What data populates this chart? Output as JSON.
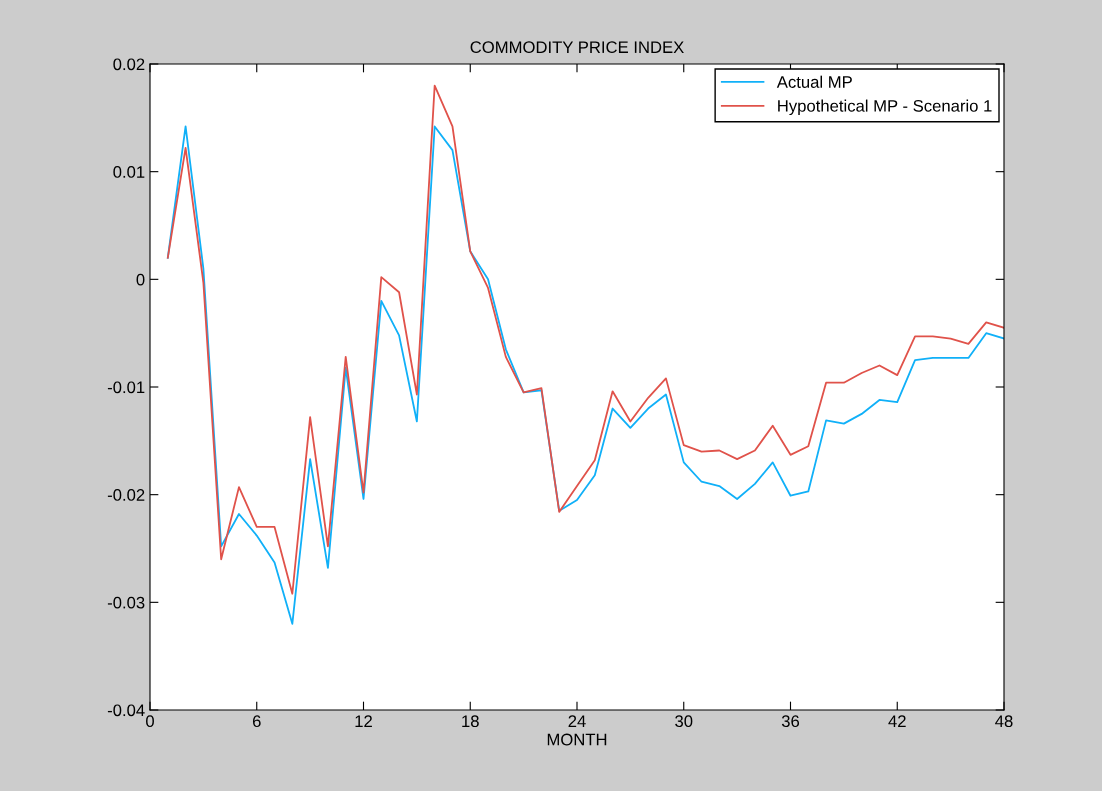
{
  "chart_data": {
    "type": "line",
    "title": "COMMODITY PRICE INDEX",
    "xlabel": "MONTH",
    "x": [
      1,
      2,
      3,
      4,
      5,
      6,
      7,
      8,
      9,
      10,
      11,
      12,
      13,
      14,
      15,
      16,
      17,
      18,
      19,
      20,
      21,
      22,
      23,
      24,
      25,
      26,
      27,
      28,
      29,
      30,
      31,
      32,
      33,
      34,
      35,
      36,
      37,
      38,
      39,
      40,
      41,
      42,
      43,
      44,
      45,
      46,
      47,
      48
    ],
    "series": [
      {
        "name": "Actual MP",
        "color": "#10b0f8",
        "values": [
          0.002,
          0.0142,
          0.001,
          -0.0248,
          -0.0218,
          -0.0238,
          -0.0263,
          -0.032,
          -0.0167,
          -0.0268,
          -0.0082,
          -0.0204,
          -0.002,
          -0.0052,
          -0.0132,
          0.0142,
          0.012,
          0.0026,
          0.0,
          -0.0065,
          -0.0105,
          -0.0103,
          -0.0215,
          -0.0205,
          -0.0182,
          -0.012,
          -0.0138,
          -0.012,
          -0.0107,
          -0.017,
          -0.0188,
          -0.0192,
          -0.0204,
          -0.019,
          -0.017,
          -0.0201,
          -0.0197,
          -0.0131,
          -0.0134,
          -0.0125,
          -0.0112,
          -0.0114,
          -0.0075,
          -0.0073,
          -0.0073,
          -0.0073,
          -0.005,
          -0.0055
        ]
      },
      {
        "name": "Hypothetical MP - Scenario 1",
        "color": "#e0524a",
        "values": [
          0.002,
          0.0122,
          -0.0003,
          -0.026,
          -0.0193,
          -0.023,
          -0.023,
          -0.0292,
          -0.0128,
          -0.0248,
          -0.0072,
          -0.0198,
          0.0002,
          -0.0012,
          -0.0107,
          0.018,
          0.0142,
          0.0026,
          -0.0008,
          -0.0072,
          -0.0105,
          -0.0101,
          -0.0216,
          -0.0192,
          -0.0168,
          -0.0104,
          -0.0132,
          -0.011,
          -0.0092,
          -0.0154,
          -0.016,
          -0.0159,
          -0.0167,
          -0.0159,
          -0.0136,
          -0.0163,
          -0.0155,
          -0.0096,
          -0.0096,
          -0.0087,
          -0.008,
          -0.0089,
          -0.0053,
          -0.0053,
          -0.0055,
          -0.006,
          -0.004,
          -0.0045
        ]
      }
    ],
    "xlim": [
      0,
      48
    ],
    "xticks": [
      0,
      6,
      12,
      18,
      24,
      30,
      36,
      42,
      48
    ],
    "ylim": [
      -0.04,
      0.02
    ],
    "yticks": [
      -0.04,
      -0.03,
      -0.02,
      -0.01,
      0,
      0.01,
      0.02
    ],
    "grid": false,
    "legend": "top right",
    "marker": "none",
    "line_style": "solid"
  }
}
